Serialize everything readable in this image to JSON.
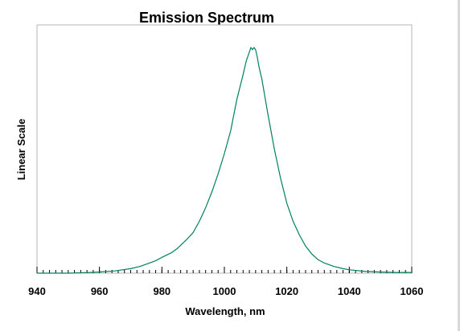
{
  "chart_data": {
    "type": "line",
    "title": "Emission Spectrum",
    "xlabel": "Wavelength, nm",
    "ylabel": "Linear Scale",
    "xlim": [
      940,
      1060
    ],
    "ylim": [
      0,
      1.1
    ],
    "x_ticks": [
      940,
      960,
      980,
      1000,
      1020,
      1040,
      1060
    ],
    "x_minor_step": 2,
    "y_tick_labels": false,
    "grid": false,
    "line_color": "#008060",
    "series": [
      {
        "x": [
          940,
          950,
          955,
          960,
          965,
          970,
          973,
          975,
          978,
          980,
          983,
          985,
          988,
          990,
          992,
          994,
          996,
          998,
          1000,
          1002,
          1004,
          1006,
          1007,
          1008,
          1008.5,
          1009,
          1009.5,
          1010,
          1010.5,
          1011,
          1012,
          1013,
          1014,
          1016,
          1018,
          1020,
          1022,
          1024,
          1026,
          1028,
          1030,
          1032,
          1035,
          1038,
          1040,
          1045,
          1050,
          1055,
          1060
        ],
        "y": [
          0,
          0,
          0.002,
          0.005,
          0.01,
          0.02,
          0.03,
          0.04,
          0.055,
          0.07,
          0.09,
          0.11,
          0.15,
          0.18,
          0.23,
          0.29,
          0.36,
          0.44,
          0.53,
          0.63,
          0.77,
          0.88,
          0.94,
          0.98,
          1.0,
          0.99,
          1.0,
          0.99,
          0.96,
          0.92,
          0.86,
          0.78,
          0.7,
          0.55,
          0.42,
          0.31,
          0.23,
          0.17,
          0.12,
          0.085,
          0.06,
          0.045,
          0.03,
          0.02,
          0.015,
          0.008,
          0.005,
          0.003,
          0.003
        ]
      }
    ]
  }
}
